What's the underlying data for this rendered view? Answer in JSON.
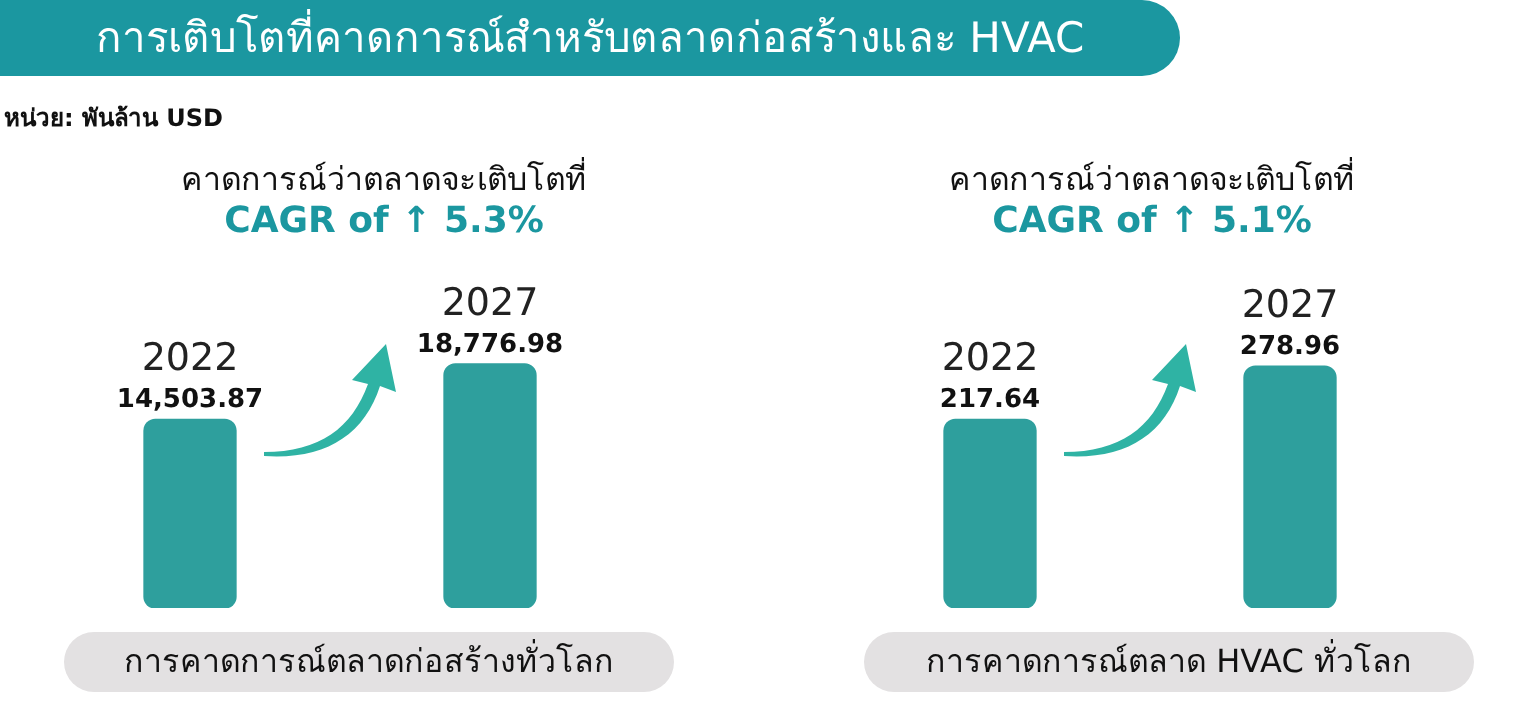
{
  "chart_data": [
    {
      "type": "bar",
      "title": "คาดการณ์ว่าตลาดจะเติบโตที่",
      "subtitle": "CAGR of ↑ 5.3%",
      "xlabel": "การคาดการณ์ตลาดก่อสร้างทั่วโลก",
      "annotations": [
        "การเติบโตที่คาดการณ์สำหรับตลาดก่อสร้างและ HVAC",
        "หน่วย: พันล้าน USD"
      ],
      "categories": [
        "2022",
        "2027"
      ],
      "values": [
        14503.87,
        18776.98
      ],
      "value_labels": [
        "14,503.87",
        "18,776.98"
      ],
      "color": "#2e9f9d"
    },
    {
      "type": "bar",
      "title": "คาดการณ์ว่าตลาดจะเติบโตที่",
      "subtitle": "CAGR of ↑ 5.1%",
      "xlabel": "การคาดการณ์ตลาด HVAC ทั่วโลก",
      "categories": [
        "2022",
        "2027"
      ],
      "values": [
        217.64,
        278.96
      ],
      "data_labels": true,
      "color": "#2e9f9d"
    }
  ]
}
